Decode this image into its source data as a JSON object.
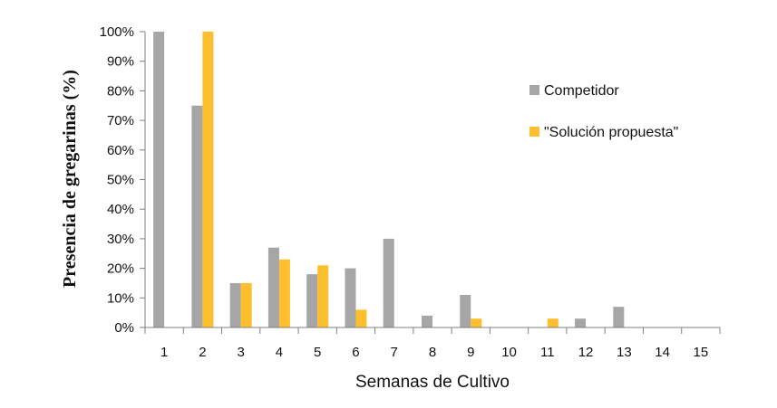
{
  "chart_data": {
    "type": "bar",
    "title": "",
    "xlabel": "Semanas de Cultivo",
    "ylabel": "Presencia de gregarinas (%)",
    "categories": [
      "1",
      "2",
      "3",
      "4",
      "5",
      "6",
      "7",
      "8",
      "9",
      "10",
      "11",
      "12",
      "13",
      "14",
      "15"
    ],
    "series": [
      {
        "name": "Competidor",
        "color": "#a6a6a6",
        "values": [
          100,
          75,
          15,
          27,
          18,
          20,
          30,
          4,
          11,
          0,
          0,
          3,
          7,
          0,
          0
        ]
      },
      {
        "name": "\"Solución propuesta\"",
        "color": "#fdbf2d",
        "values": [
          0,
          100,
          15,
          23,
          21,
          6,
          0,
          0,
          3,
          0,
          3,
          0,
          0,
          0,
          0
        ]
      }
    ],
    "ylim": [
      0,
      100
    ],
    "yticks": [
      0,
      10,
      20,
      30,
      40,
      50,
      60,
      70,
      80,
      90,
      100
    ],
    "ytick_labels": [
      "0%",
      "10%",
      "20%",
      "30%",
      "40%",
      "50%",
      "60%",
      "70%",
      "80%",
      "90%",
      "100%"
    ],
    "grid": false,
    "legend_position": "right"
  }
}
